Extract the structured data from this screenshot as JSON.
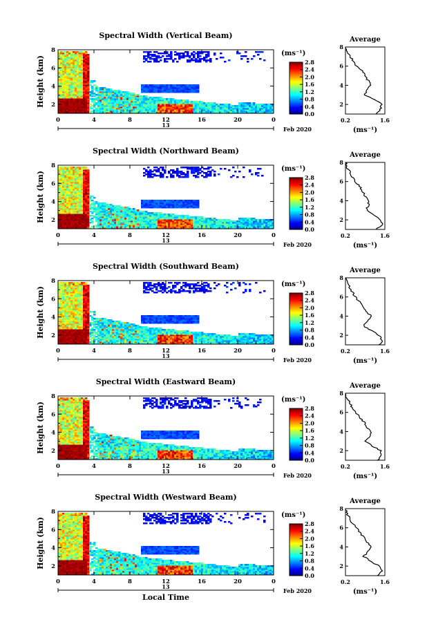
{
  "figure": {
    "xlabel": "Local Time",
    "date_label": "13",
    "date_suffix": "Feb 2020",
    "colorbar_unit": "(ms⁻¹)",
    "profile_title": "Average",
    "profile_unit": "(ms⁻¹)"
  },
  "chart_data": [
    {
      "type": "heatmap",
      "title": "Spectral Width (Vertical Beam)",
      "ylabel": "Height (km)",
      "x_ticks": [
        "0",
        "4",
        "8",
        "12",
        "16",
        "20",
        "0"
      ],
      "y_ticks": [
        "2",
        "4",
        "6",
        "8"
      ],
      "xlim": [
        0,
        24
      ],
      "ylim": [
        1,
        8
      ],
      "colorbar": {
        "ticks": [
          "2.8",
          "2.4",
          "2.0",
          "1.6",
          "1.2",
          "0.8",
          "0.4",
          "0.0"
        ],
        "range": [
          0,
          2.8
        ]
      },
      "profile": {
        "title": "Average",
        "x_ticks": [
          "0.2",
          "1.6"
        ],
        "xlim": [
          0.2,
          1.6
        ],
        "y_ticks": [
          "2",
          "4",
          "6",
          "8"
        ],
        "heights": [
          1,
          1.5,
          2,
          2.5,
          3,
          3.5,
          4,
          4.5,
          5,
          5.5,
          6,
          6.5,
          7,
          7.5,
          8
        ],
        "values": [
          1.3,
          1.45,
          1.5,
          1.25,
          0.9,
          0.95,
          1.1,
          1.0,
          0.9,
          0.8,
          0.6,
          0.5,
          0.35,
          0.25,
          0.2
        ]
      }
    },
    {
      "type": "heatmap",
      "title": "Spectral Width (Northward Beam)",
      "ylabel": "Height (km)",
      "x_ticks": [
        "0",
        "4",
        "8",
        "12",
        "16",
        "20",
        "0"
      ],
      "y_ticks": [
        "2",
        "4",
        "6",
        "8"
      ],
      "xlim": [
        0,
        24
      ],
      "ylim": [
        1,
        8
      ],
      "colorbar": {
        "ticks": [
          "2.8",
          "2.4",
          "2.0",
          "1.6",
          "1.2",
          "0.8",
          "0.4",
          "0.0"
        ],
        "range": [
          0,
          2.8
        ]
      },
      "profile": {
        "title": "Average",
        "x_ticks": [
          "0.2",
          "1.6"
        ],
        "xlim": [
          0.2,
          1.6
        ],
        "y_ticks": [
          "2",
          "4",
          "6",
          "8"
        ],
        "heights": [
          1,
          1.5,
          2,
          2.5,
          3,
          3.5,
          4,
          4.5,
          5,
          5.5,
          6,
          6.5,
          7,
          7.5,
          8
        ],
        "values": [
          1.3,
          1.5,
          1.45,
          1.2,
          0.95,
          1.0,
          1.05,
          0.9,
          0.8,
          0.7,
          0.55,
          0.45,
          0.35,
          0.25,
          0.2
        ]
      }
    },
    {
      "type": "heatmap",
      "title": "Spectral Width (Southward Beam)",
      "ylabel": "Height (km)",
      "x_ticks": [
        "0",
        "4",
        "8",
        "12",
        "16",
        "20",
        "0"
      ],
      "y_ticks": [
        "2",
        "4",
        "6",
        "8"
      ],
      "xlim": [
        0,
        24
      ],
      "ylim": [
        1,
        8
      ],
      "colorbar": {
        "ticks": [
          "2.8",
          "2.4",
          "2.0",
          "1.6",
          "1.2",
          "0.8",
          "0.4",
          "0.0"
        ],
        "range": [
          0,
          2.8
        ]
      },
      "profile": {
        "title": "Average",
        "x_ticks": [
          "0.2",
          "1.6"
        ],
        "xlim": [
          0.2,
          1.6
        ],
        "y_ticks": [
          "2",
          "4",
          "6",
          "8"
        ],
        "heights": [
          1,
          1.5,
          2,
          2.5,
          3,
          3.5,
          4,
          4.5,
          5,
          5.5,
          6,
          6.5,
          7,
          7.5,
          8
        ],
        "values": [
          1.4,
          1.5,
          1.4,
          1.1,
          0.85,
          1.0,
          1.1,
          0.95,
          0.85,
          0.7,
          0.55,
          0.45,
          0.35,
          0.25,
          0.2
        ]
      }
    },
    {
      "type": "heatmap",
      "title": "Spectral Width (Eastward Beam)",
      "ylabel": "Height (km)",
      "x_ticks": [
        "0",
        "4",
        "8",
        "12",
        "16",
        "20",
        "0"
      ],
      "y_ticks": [
        "2",
        "4",
        "6",
        "8"
      ],
      "xlim": [
        0,
        24
      ],
      "ylim": [
        1,
        8
      ],
      "colorbar": {
        "ticks": [
          "2.8",
          "2.4",
          "2.0",
          "1.6",
          "1.2",
          "0.8",
          "0.4",
          "0.0"
        ],
        "range": [
          0,
          2.8
        ]
      },
      "profile": {
        "title": "Average",
        "x_ticks": [
          "0.2",
          "1.6"
        ],
        "xlim": [
          0.2,
          1.6
        ],
        "y_ticks": [
          "2",
          "4",
          "6",
          "8"
        ],
        "heights": [
          1,
          1.5,
          2,
          2.5,
          3,
          3.5,
          4,
          4.5,
          5,
          5.5,
          6,
          6.5,
          7,
          7.5,
          8
        ],
        "values": [
          1.35,
          1.5,
          1.45,
          1.15,
          0.9,
          1.05,
          1.1,
          0.95,
          0.85,
          0.7,
          0.55,
          0.45,
          0.35,
          0.25,
          0.2
        ]
      }
    },
    {
      "type": "heatmap",
      "title": "Spectral Width (Westward Beam)",
      "ylabel": "Height (km)",
      "x_ticks": [
        "0",
        "4",
        "8",
        "12",
        "16",
        "20",
        "0"
      ],
      "y_ticks": [
        "2",
        "4",
        "6",
        "8"
      ],
      "xlim": [
        0,
        24
      ],
      "ylim": [
        1,
        8
      ],
      "colorbar": {
        "ticks": [
          "2.8",
          "2.4",
          "2.0",
          "1.6",
          "1.2",
          "0.8",
          "0.4",
          "0.0"
        ],
        "range": [
          0,
          2.8
        ]
      },
      "profile": {
        "title": "Average",
        "x_ticks": [
          "0.2",
          "1.6"
        ],
        "xlim": [
          0.2,
          1.6
        ],
        "y_ticks": [
          "2",
          "4",
          "6",
          "8"
        ],
        "heights": [
          1,
          1.5,
          2,
          2.5,
          3,
          3.5,
          4,
          4.5,
          5,
          5.5,
          6,
          6.5,
          7,
          7.5,
          8
        ],
        "values": [
          1.35,
          1.5,
          1.4,
          1.1,
          0.85,
          1.0,
          1.15,
          0.95,
          0.85,
          0.7,
          0.6,
          0.45,
          0.35,
          0.25,
          0.2
        ]
      }
    }
  ]
}
